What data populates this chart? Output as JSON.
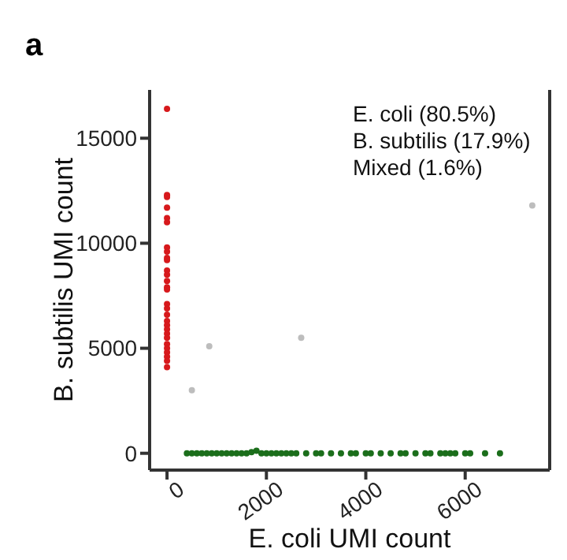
{
  "chart_data": {
    "type": "scatter",
    "title": "a",
    "xlabel": "E. coli UMI count",
    "ylabel": "B. subtilis UMI count",
    "annotations": [
      "E. coli (80.5%)",
      "B. subtilis (17.9%)",
      "Mixed (1.6%)"
    ],
    "xlim": [
      -350,
      7700
    ],
    "ylim": [
      -800,
      17300
    ],
    "xticks": [
      0,
      2000,
      4000,
      6000
    ],
    "yticks": [
      0,
      5000,
      10000,
      15000
    ],
    "marker": "circle",
    "series": [
      {
        "color": "#d7191c",
        "x": [
          0,
          0,
          0,
          0,
          0,
          0,
          0,
          0,
          0,
          0,
          0,
          0,
          0,
          0,
          0,
          0,
          0,
          0,
          0,
          0,
          0,
          0,
          0,
          0,
          0,
          0,
          0,
          0,
          0
        ],
        "values": [
          16400,
          12300,
          12200,
          11700,
          11200,
          11000,
          9800,
          9600,
          9300,
          9200,
          8700,
          8500,
          8200,
          7900,
          7800,
          7100,
          6900,
          6600,
          6300,
          6100,
          5900,
          5700,
          5500,
          5200,
          5000,
          4800,
          4600,
          4400,
          4100
        ]
      },
      {
        "color": "#1b6e1b",
        "x": [
          400,
          500,
          600,
          700,
          800,
          900,
          1000,
          1100,
          1200,
          1300,
          1400,
          1500,
          1600,
          1700,
          1800,
          1900,
          2000,
          2100,
          2200,
          2300,
          2400,
          2500,
          2600,
          2800,
          3000,
          3100,
          3300,
          3500,
          3700,
          3800,
          4000,
          4100,
          4300,
          4500,
          4700,
          4800,
          5000,
          5200,
          5300,
          5500,
          5600,
          5700,
          5800,
          6000,
          6100,
          6400,
          6700
        ],
        "values": [
          0,
          0,
          0,
          0,
          0,
          0,
          0,
          0,
          0,
          0,
          0,
          0,
          0,
          50,
          120,
          0,
          0,
          0,
          0,
          0,
          0,
          0,
          0,
          0,
          0,
          0,
          0,
          0,
          0,
          0,
          0,
          0,
          0,
          0,
          0,
          0,
          0,
          0,
          0,
          0,
          0,
          0,
          0,
          0,
          0,
          0,
          0
        ]
      },
      {
        "color": "#bdbdbd",
        "x": [
          500,
          850,
          2700,
          7350
        ],
        "values": [
          3000,
          5100,
          5500,
          11800
        ]
      }
    ]
  }
}
